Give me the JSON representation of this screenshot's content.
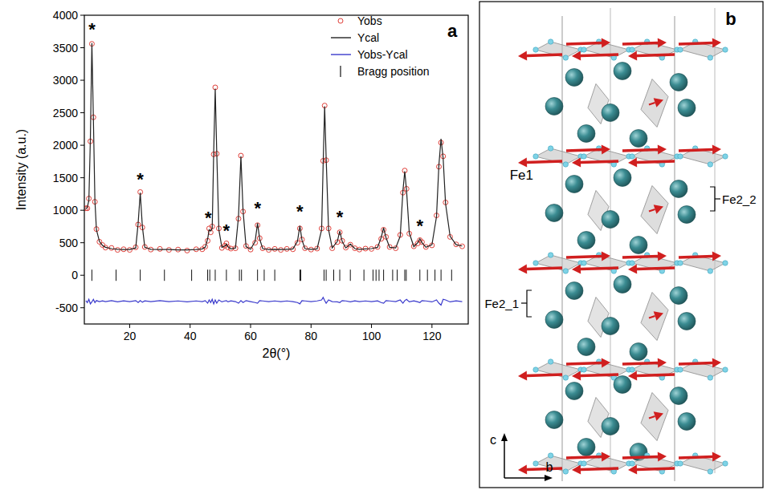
{
  "chart_data": {
    "type": "scatter",
    "panel_label": "a",
    "x_label": "2θ(°)",
    "y_label": "Intensity (a.u.)",
    "xlim": [
      5,
      132
    ],
    "xticks": [
      20,
      40,
      60,
      80,
      100,
      120
    ],
    "ylim": [
      -750,
      4000
    ],
    "yticks": [
      -500,
      0,
      500,
      1000,
      1500,
      2000,
      2500,
      3000,
      3500,
      4000
    ],
    "grid": false,
    "legend": "upper right",
    "x": [
      5.5,
      6,
      6.5,
      7,
      7.5,
      8,
      8.5,
      9,
      10,
      11,
      12,
      14,
      16,
      18,
      20,
      22,
      22.8,
      23.5,
      24.2,
      25,
      27,
      30,
      33,
      36,
      39,
      42,
      44,
      45,
      45.8,
      46.3,
      46.8,
      47.3,
      47.8,
      48.3,
      48.8,
      49.5,
      50.5,
      51.5,
      52,
      52.5,
      53.5,
      55,
      56,
      56.8,
      57.5,
      58.5,
      60,
      61.5,
      62.3,
      63,
      64,
      66,
      68,
      70,
      72,
      74,
      75.5,
      76.3,
      77,
      78,
      80,
      82,
      83.5,
      84,
      84.5,
      85,
      85.8,
      87,
      88.7,
      89.5,
      90.3,
      91.5,
      93,
      94.5,
      96,
      98,
      100,
      102,
      103.2,
      104,
      104.8,
      106,
      108,
      109.5,
      110.4,
      111,
      111.6,
      112.5,
      114,
      115.3,
      116,
      116.7,
      118,
      120,
      121.5,
      122.3,
      123,
      123.7,
      124.5,
      126,
      128,
      130
    ],
    "series": [
      {
        "name": "Yobs",
        "type": "scatter",
        "marker": "circle",
        "color": "#e0403a",
        "values": [
          1030,
          1030,
          1180,
          2060,
          3560,
          2430,
          1130,
          710,
          515,
          465,
          425,
          420,
          390,
          400,
          390,
          430,
          780,
          1280,
          735,
          435,
          395,
          405,
          390,
          395,
          380,
          400,
          400,
          440,
          530,
          720,
          660,
          750,
          1860,
          2890,
          1870,
          720,
          420,
          455,
          490,
          430,
          410,
          415,
          870,
          1840,
          980,
          450,
          395,
          500,
          770,
          570,
          415,
          390,
          405,
          390,
          405,
          400,
          500,
          720,
          550,
          415,
          395,
          410,
          720,
          1760,
          2610,
          1770,
          720,
          415,
          510,
          660,
          530,
          425,
          470,
          415,
          395,
          410,
          405,
          435,
          560,
          700,
          590,
          435,
          415,
          620,
          1270,
          1610,
          1330,
          640,
          445,
          490,
          540,
          510,
          435,
          460,
          920,
          1670,
          2040,
          1830,
          1120,
          590,
          475,
          445
        ]
      },
      {
        "name": "Ycal",
        "type": "line",
        "line_style": "solid",
        "color": "#222222",
        "values": [
          1020,
          1050,
          1150,
          2100,
          3570,
          2400,
          1150,
          700,
          520,
          460,
          430,
          410,
          400,
          395,
          395,
          420,
          800,
          1270,
          750,
          430,
          400,
          395,
          395,
          390,
          390,
          395,
          405,
          430,
          560,
          700,
          680,
          720,
          1900,
          2870,
          1900,
          700,
          430,
          450,
          480,
          440,
          405,
          420,
          900,
          1830,
          1000,
          440,
          400,
          520,
          800,
          560,
          410,
          395,
          400,
          395,
          400,
          405,
          520,
          760,
          540,
          410,
          400,
          405,
          700,
          1700,
          2600,
          1800,
          700,
          420,
          520,
          680,
          520,
          420,
          480,
          410,
          400,
          405,
          410,
          430,
          580,
          730,
          580,
          430,
          420,
          600,
          1300,
          1600,
          1300,
          650,
          440,
          500,
          560,
          500,
          430,
          470,
          900,
          1700,
          2100,
          1800,
          1100,
          600,
          470,
          450
        ]
      },
      {
        "name": "Yobs-Ycal",
        "type": "line",
        "line_style": "solid",
        "color": "#3a3acc",
        "values": [
          -390,
          -420,
          -370,
          -440,
          -410,
          -370,
          -420,
          -390,
          -405,
          -395,
          -405,
          -390,
          -410,
          -395,
          -405,
          -390,
          -420,
          -390,
          -415,
          -395,
          -405,
          -390,
          -405,
          -395,
          -410,
          -395,
          -405,
          -390,
          -430,
          -380,
          -420,
          -370,
          -440,
          -380,
          -430,
          -380,
          -410,
          -395,
          -390,
          -410,
          -395,
          -405,
          -430,
          -390,
          -420,
          -390,
          -405,
          -420,
          -430,
          -390,
          -395,
          -405,
          -395,
          -405,
          -395,
          -405,
          -420,
          -440,
          -390,
          -395,
          -405,
          -395,
          -380,
          -340,
          -390,
          -430,
          -380,
          -405,
          -410,
          -420,
          -390,
          -395,
          -410,
          -395,
          -405,
          -395,
          -405,
          -395,
          -420,
          -430,
          -390,
          -395,
          -405,
          -380,
          -430,
          -390,
          -370,
          -410,
          -395,
          -410,
          -420,
          -390,
          -395,
          -410,
          -380,
          -430,
          -460,
          -370,
          -380,
          -410,
          -395,
          -405
        ]
      },
      {
        "name": "Bragg position",
        "type": "tick",
        "color": "#111111",
        "x": [
          7.5,
          15.5,
          23.5,
          31.5,
          40.5,
          45.8,
          46.5,
          48.3,
          52,
          56.3,
          57,
          62.3,
          64.5,
          68,
          76.3,
          76.6,
          84.3,
          85,
          87.5,
          89.5,
          93,
          97.5,
          100.5,
          101.5,
          102.5,
          104,
          107,
          108.5,
          111,
          111.5,
          116,
          118.5,
          121,
          123,
          126.5
        ],
        "values": [
          0,
          0,
          0,
          0,
          0,
          0,
          0,
          0,
          0,
          0,
          0,
          0,
          0,
          0,
          0,
          0,
          0,
          0,
          0,
          0,
          0,
          0,
          0,
          0,
          0,
          0,
          0,
          0,
          0,
          0,
          0,
          0,
          0,
          0,
          0
        ]
      }
    ],
    "annotations": [
      {
        "text": "*",
        "x": 7.5,
        "y": 3800
      },
      {
        "text": "*",
        "x": 23.5,
        "y": 1500
      },
      {
        "text": "*",
        "x": 46.0,
        "y": 900
      },
      {
        "text": "*",
        "x": 52,
        "y": 700
      },
      {
        "text": "*",
        "x": 62.3,
        "y": 1050
      },
      {
        "text": "*",
        "x": 76.3,
        "y": 1000
      },
      {
        "text": "*",
        "x": 89.5,
        "y": 920
      },
      {
        "text": "*",
        "x": 116,
        "y": 780
      }
    ]
  },
  "diagram": {
    "panel_label": "b",
    "labels": [
      {
        "text": "Fe1"
      },
      {
        "text": "Fe2_2"
      },
      {
        "text": "Fe2_1"
      }
    ],
    "axes": {
      "vertical": "c",
      "horizontal": "b"
    }
  }
}
